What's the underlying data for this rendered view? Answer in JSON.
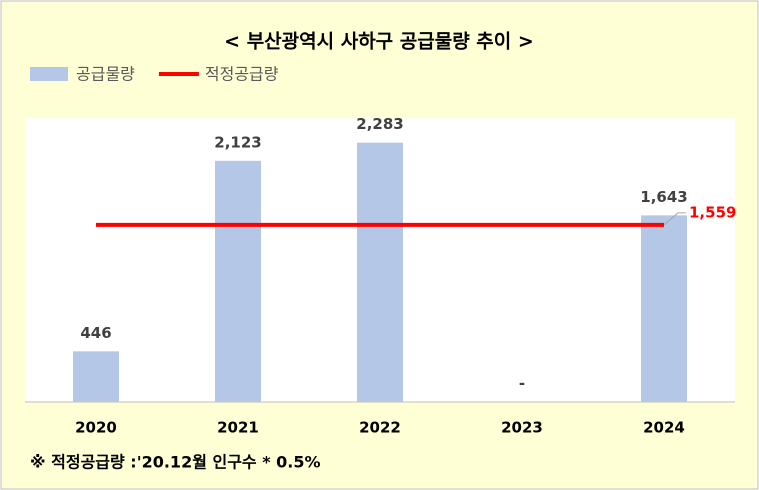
{
  "chart_data": {
    "type": "bar",
    "title": "< 부산광역시 사하구 공급물량 추이 >",
    "categories": [
      "2020",
      "2021",
      "2022",
      "2023",
      "2024"
    ],
    "series": [
      {
        "name": "공급물량",
        "type": "bar",
        "color": "#b4c7e7",
        "values": [
          446,
          2123,
          2283,
          0,
          1643
        ],
        "value_labels": [
          "446",
          "2,123",
          "2,283",
          "-",
          "1,643"
        ]
      },
      {
        "name": "적정공급량",
        "type": "line",
        "color": "#ff0000",
        "values": [
          1559,
          1559,
          1559,
          1559,
          1559
        ],
        "value_labels": [
          null,
          null,
          null,
          null,
          "1,559"
        ]
      }
    ],
    "ylim": [
      0,
      2500
    ],
    "grid": false,
    "legend": "top-left",
    "footnote": "※ 적정공급량 :'20.12월 인구수 * 0.5%"
  }
}
